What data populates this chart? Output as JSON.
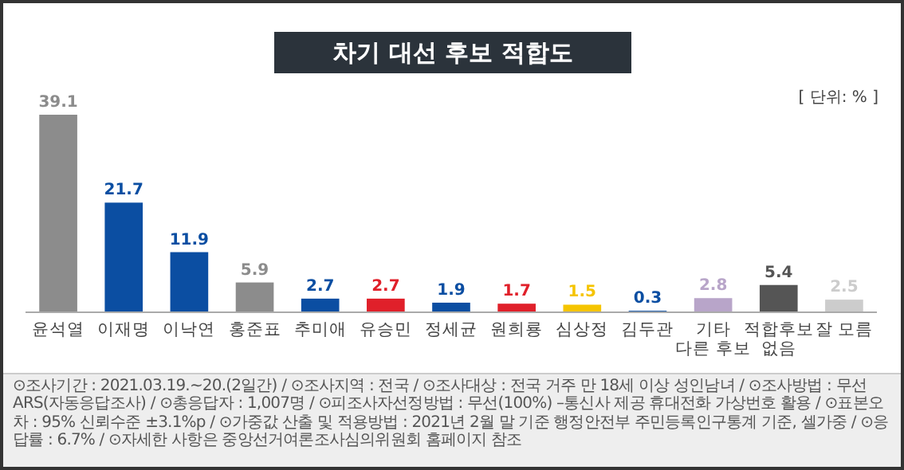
{
  "chart_data": {
    "type": "bar",
    "title": "차기 대선 후보 적합도",
    "categories": [
      "윤석열",
      "이재명",
      "이낙연",
      "홍준표",
      "추미애",
      "유승민",
      "정세균",
      "원희룡",
      "심상정",
      "김두관",
      "기타 다른 후보",
      "적합후보 없음",
      "잘 모름"
    ],
    "values": [
      39.1,
      21.7,
      11.9,
      5.9,
      2.7,
      2.7,
      1.9,
      1.7,
      1.5,
      0.3,
      2.8,
      5.4,
      2.5
    ],
    "colors": [
      "#8c8c8c",
      "#0b4ea2",
      "#0b4ea2",
      "#8c8c8c",
      "#0b4ea2",
      "#e0202a",
      "#0b4ea2",
      "#e0202a",
      "#f5c400",
      "#0b4ea2",
      "#b8a5c9",
      "#555555",
      "#cccccc"
    ],
    "data_labels": true,
    "annotations": [
      "[ 단위: % ]",
      "⊙조사기간 : 2021.03.19.~20.(2일간) / ⊙조사지역 : 전국 / ⊙조사대상 : 전국 거주 만 18세 이상 성인남녀 / ⊙조사방법 : 무선 ARS(자동응답조사) / ⊙총응답자 : 1,007명 / ⊙피조사자선정방법 : 무선(100%) –통신사 제공 휴대전화 가상번호 활용 / ⊙표본오차 : 95% 신뢰수준 ±3.1%p / ⊙가중값 산출 및 적용방법 : 2021년 2월 말 기준 행정안전부 주민등록인구통계 기준, 셀가중 / ⊙응답률 : 6.7% / ⊙자세한 사항은 중앙선거여론조사심의위원회 홈페이지 참조"
    ]
  }
}
